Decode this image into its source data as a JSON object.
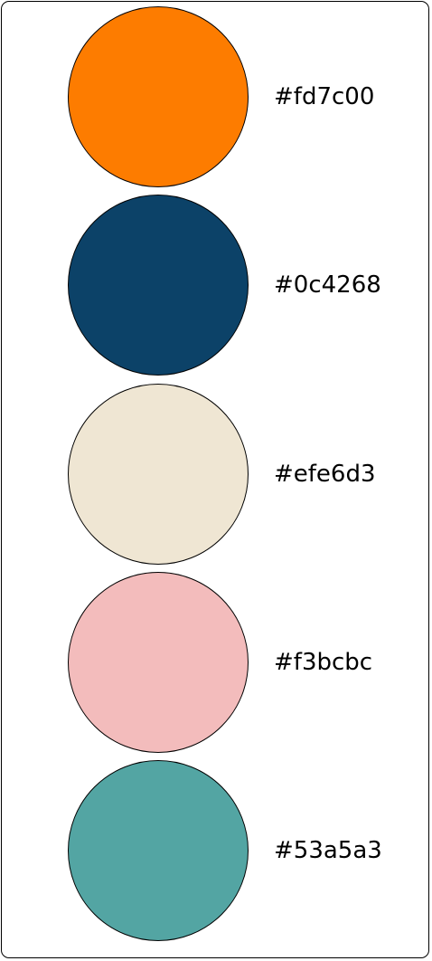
{
  "palette": {
    "swatches": [
      {
        "hex": "#fd7c00",
        "label": "#fd7c00"
      },
      {
        "hex": "#0c4268",
        "label": "#0c4268"
      },
      {
        "hex": "#efe6d3",
        "label": "#efe6d3"
      },
      {
        "hex": "#f3bcbc",
        "label": "#f3bcbc"
      },
      {
        "hex": "#53a5a3",
        "label": "#53a5a3"
      }
    ]
  }
}
